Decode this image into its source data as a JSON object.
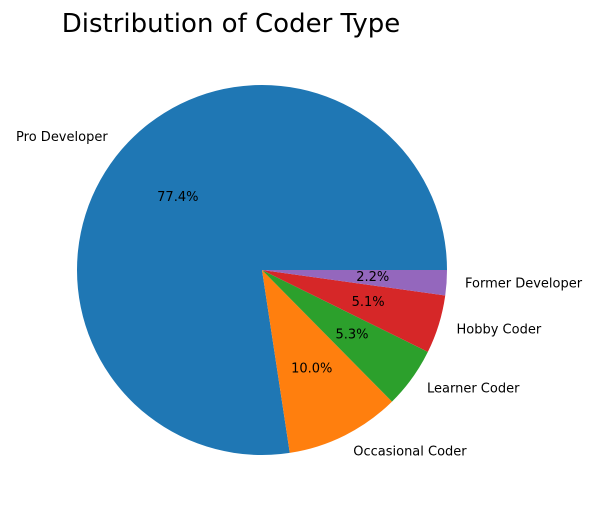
{
  "chart_data": {
    "type": "pie",
    "title": "Distribution of Coder Type",
    "start_angle_deg": 0,
    "direction": "counterclockwise",
    "slices": [
      {
        "label": "Pro Developer",
        "value": 77.4,
        "pct_label": "77.4%",
        "color": "#1f77b4"
      },
      {
        "label": "Occasional Coder",
        "value": 10.0,
        "pct_label": "10.0%",
        "color": "#ff7f0e"
      },
      {
        "label": "Learner Coder",
        "value": 5.3,
        "pct_label": "5.3%",
        "color": "#2ca02c"
      },
      {
        "label": "Hobby Coder",
        "value": 5.1,
        "pct_label": "5.1%",
        "color": "#d62728"
      },
      {
        "label": "Former Developer",
        "value": 2.2,
        "pct_label": "2.2%",
        "color": "#9467bd"
      }
    ]
  }
}
